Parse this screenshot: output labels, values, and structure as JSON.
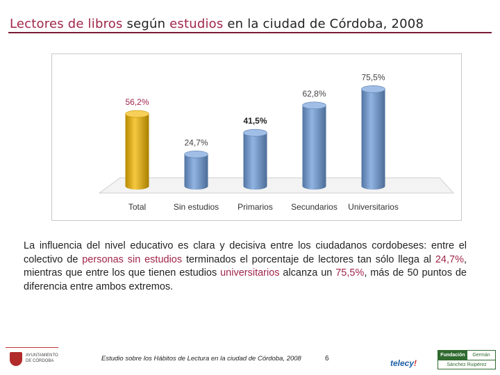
{
  "title": {
    "part1": "Lectores de libros",
    "part2": " según ",
    "part3": "estudios",
    "part4": " en la ciudad de Córdoba, 2008"
  },
  "chart_data": {
    "type": "bar",
    "categories": [
      "Total",
      "Sin estudios",
      "Primarios",
      "Secundarios",
      "Universitarios"
    ],
    "values": [
      56.2,
      24.7,
      41.5,
      62.8,
      75.5
    ],
    "labels": [
      "56,2%",
      "24,7%",
      "41,5%",
      "62,8%",
      "75,5%"
    ],
    "ylim": [
      0,
      80
    ],
    "colors": [
      "#f2b600",
      "#6d9bd8",
      "#6d9bd8",
      "#6d9bd8",
      "#6d9bd8"
    ],
    "label_colors": [
      "#a0254a",
      "#444444",
      "#222222",
      "#444444",
      "#444444"
    ],
    "title": "",
    "xlabel": "",
    "ylabel": ""
  },
  "paragraph": {
    "p1": "La influencia del nivel educativo es clara y decisiva entre los ciudadanos cordobeses: entre el colectivo de ",
    "h1": "personas sin estudios",
    "p2": " terminados el porcentaje de lectores tan sólo llega al ",
    "h2": "24,7%",
    "p3": ", mientras que entre los que tienen estudios ",
    "h3": "universitarios",
    "p4": " alcanza un ",
    "h4": "75,5%",
    "p5": ", más de 50 puntos de diferencia entre ambos extremos."
  },
  "footer": {
    "study": "Estudio sobre los Hábitos de Lectura en la ciudad de Córdoba, 2008",
    "page": "6",
    "ayto_line1": "AYUNTAMIENTO",
    "ayto_line2": "DE CÓRDOBA",
    "telecy": "telecy",
    "telecy_mark": "!",
    "fund_1": "Fundación",
    "fund_2": "Germán",
    "fund_3": "Sánchez Ruipérez"
  }
}
